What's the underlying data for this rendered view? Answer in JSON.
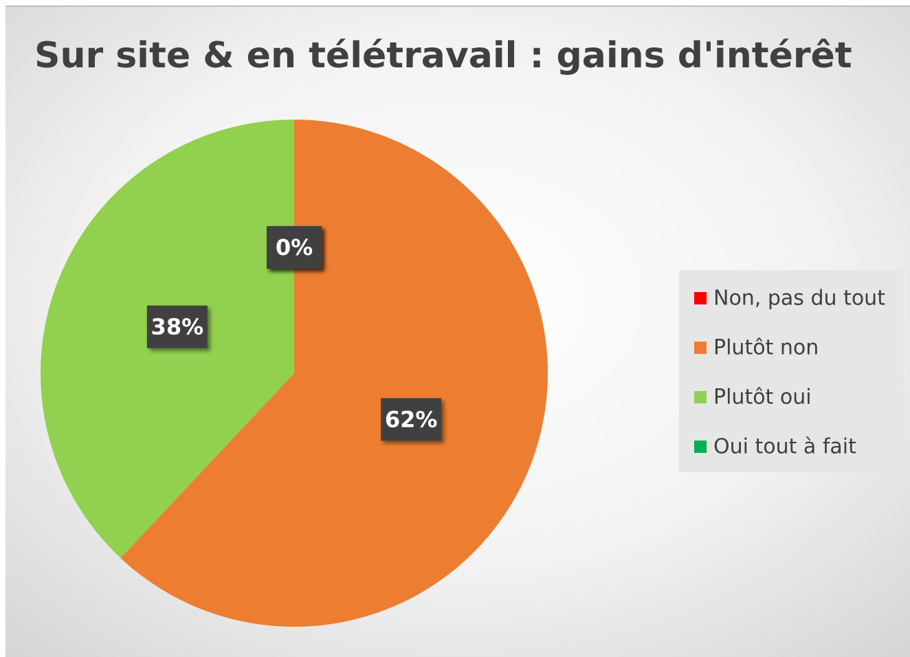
{
  "chart_data": {
    "type": "pie",
    "title": "Sur site & en télétravail : gains d'intérêt",
    "categories": [
      "Non, pas du tout",
      "Plutôt non",
      "Plutôt oui",
      "Oui tout à fait"
    ],
    "values": [
      0,
      62,
      38,
      0
    ],
    "value_labels": [
      "0%",
      "62%",
      "38%",
      "0%"
    ],
    "colors": [
      "#ff0000",
      "#ed7d31",
      "#92d050",
      "#00b050"
    ],
    "legend": "right"
  }
}
